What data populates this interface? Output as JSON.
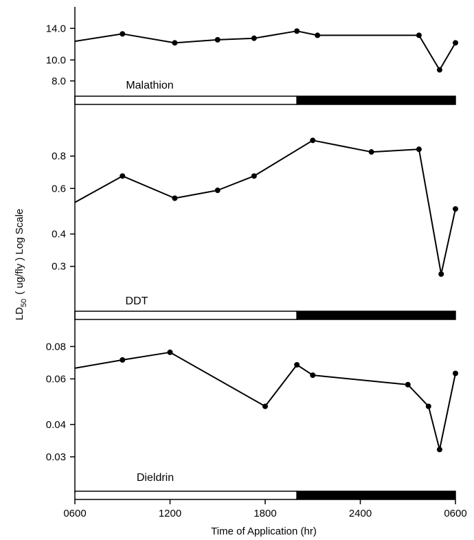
{
  "chart_data": {
    "type": "line",
    "xlabel": "Time of Application (hr)",
    "ylabel": {
      "prefix": "LD",
      "subscript": "50",
      "suffix": "( ug/fly ) Log Scale"
    },
    "x_ticks": [
      "0600",
      "1200",
      "1800",
      "2400",
      "0600"
    ],
    "x_range_hours": [
      6,
      30
    ],
    "light_dark_bar": {
      "light_hours": [
        6,
        20
      ],
      "dark_hours": [
        20,
        30
      ]
    },
    "panels": [
      {
        "name": "Malathion",
        "y_scale": "log",
        "y_range": [
          6.9,
          16.6
        ],
        "y_tick_values": [
          8.0,
          10.0,
          14.0
        ],
        "y_tick_labels": [
          "8.0",
          "10.0",
          "14.0"
        ],
        "points": [
          {
            "x": 6.0,
            "y": 12.2,
            "marker": false
          },
          {
            "x": 9.0,
            "y": 13.2,
            "marker": true
          },
          {
            "x": 12.3,
            "y": 12.0,
            "marker": true
          },
          {
            "x": 15.0,
            "y": 12.4,
            "marker": true
          },
          {
            "x": 17.3,
            "y": 12.6,
            "marker": true
          },
          {
            "x": 20.0,
            "y": 13.6,
            "marker": true
          },
          {
            "x": 21.3,
            "y": 13.0,
            "marker": true
          },
          {
            "x": 27.7,
            "y": 13.0,
            "marker": true
          },
          {
            "x": 29.0,
            "y": 9.0,
            "marker": true
          },
          {
            "x": 30.0,
            "y": 12.0,
            "marker": true
          }
        ]
      },
      {
        "name": "DDT",
        "y_scale": "log",
        "y_range": [
          0.205,
          1.17
        ],
        "y_tick_values": [
          0.3,
          0.4,
          0.6,
          0.8
        ],
        "y_tick_labels": [
          "0.3",
          "0.4",
          "0.6",
          "0.8"
        ],
        "points": [
          {
            "x": 6.0,
            "y": 0.53,
            "marker": false
          },
          {
            "x": 9.0,
            "y": 0.67,
            "marker": true
          },
          {
            "x": 12.3,
            "y": 0.55,
            "marker": true
          },
          {
            "x": 15.0,
            "y": 0.59,
            "marker": true
          },
          {
            "x": 17.3,
            "y": 0.67,
            "marker": true
          },
          {
            "x": 21.0,
            "y": 0.92,
            "marker": true
          },
          {
            "x": 24.7,
            "y": 0.83,
            "marker": true
          },
          {
            "x": 27.7,
            "y": 0.85,
            "marker": true
          },
          {
            "x": 29.1,
            "y": 0.28,
            "marker": true
          },
          {
            "x": 30.0,
            "y": 0.5,
            "marker": true
          }
        ]
      },
      {
        "name": "Dieldrin",
        "y_scale": "log",
        "y_range": [
          0.0225,
          0.094
        ],
        "y_tick_values": [
          0.03,
          0.04,
          0.06,
          0.08
        ],
        "y_tick_labels": [
          "0.03",
          "0.04",
          "0.06",
          "0.08"
        ],
        "points": [
          {
            "x": 6.0,
            "y": 0.066,
            "marker": false
          },
          {
            "x": 9.0,
            "y": 0.071,
            "marker": true
          },
          {
            "x": 12.0,
            "y": 0.076,
            "marker": true
          },
          {
            "x": 18.0,
            "y": 0.047,
            "marker": true
          },
          {
            "x": 20.0,
            "y": 0.068,
            "marker": true
          },
          {
            "x": 21.0,
            "y": 0.062,
            "marker": true
          },
          {
            "x": 27.0,
            "y": 0.057,
            "marker": true
          },
          {
            "x": 28.3,
            "y": 0.047,
            "marker": true
          },
          {
            "x": 29.0,
            "y": 0.032,
            "marker": true
          },
          {
            "x": 30.0,
            "y": 0.063,
            "marker": true
          }
        ]
      }
    ]
  }
}
